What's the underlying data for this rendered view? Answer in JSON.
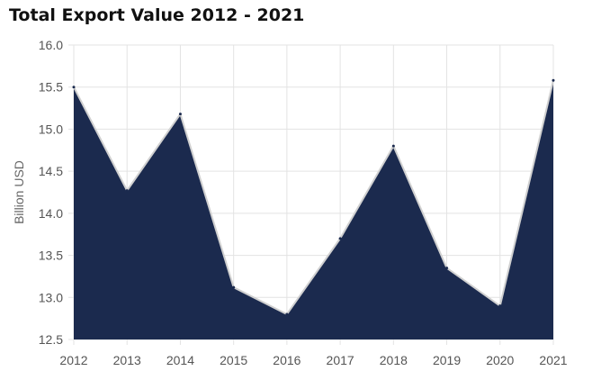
{
  "chart_data": {
    "type": "area",
    "title": "Total Export Value 2012 - 2021",
    "xlabel": "",
    "ylabel": "Billion USD",
    "categories": [
      "2012",
      "2013",
      "2014",
      "2015",
      "2016",
      "2017",
      "2018",
      "2019",
      "2020",
      "2021"
    ],
    "values": [
      15.5,
      14.27,
      15.18,
      13.12,
      12.8,
      13.7,
      14.8,
      13.35,
      12.9,
      15.58
    ],
    "ylim": [
      12.5,
      16.0
    ],
    "yticks": [
      "12.5",
      "13.0",
      "13.5",
      "14.0",
      "14.5",
      "15.0",
      "15.5",
      "16.0"
    ],
    "grid": true,
    "colors": {
      "fill": "#1b2a4e",
      "outline": "#d0d0d0",
      "grid": "#e3e3e3"
    }
  }
}
